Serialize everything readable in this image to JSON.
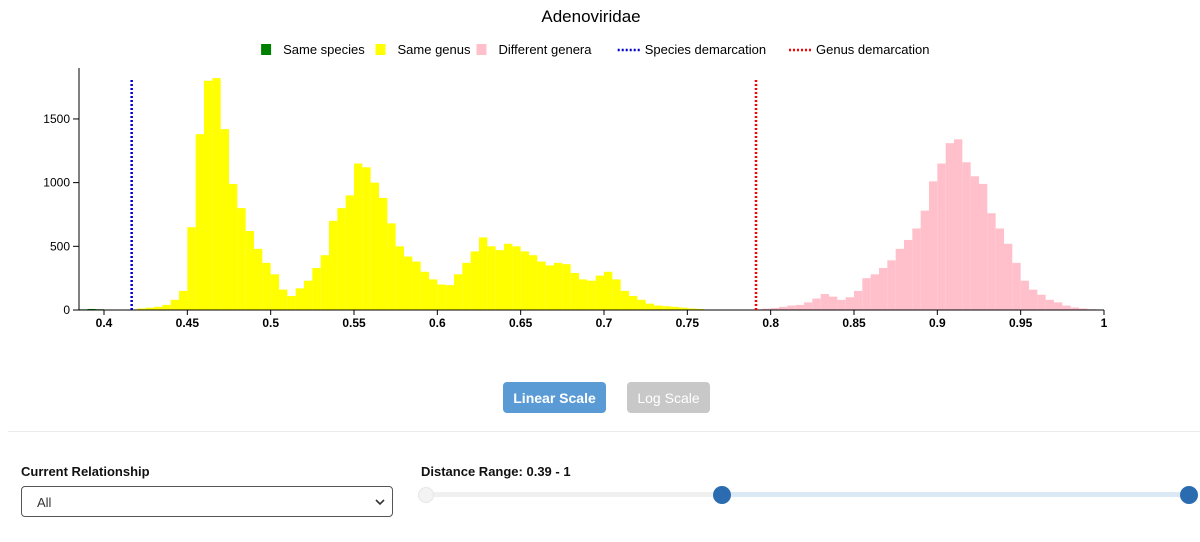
{
  "chart_data": {
    "type": "bar",
    "title": "Adenoviridae",
    "xlim": [
      0.385,
      1.0
    ],
    "ylim": [
      0,
      1900
    ],
    "x_ticks": [
      "0.4",
      "0.45",
      "0.5",
      "0.55",
      "0.6",
      "0.65",
      "0.7",
      "0.75",
      "0.8",
      "0.85",
      "0.9",
      "0.95",
      "1"
    ],
    "y_ticks": [
      "0",
      "500",
      "1000",
      "1500"
    ],
    "bin_width": 0.005,
    "grid": false,
    "legend_position": "top-center",
    "legend": [
      {
        "label": "Same species",
        "color": "#008000",
        "kind": "swatch"
      },
      {
        "label": "Same genus",
        "color": "#ffff00",
        "kind": "swatch"
      },
      {
        "label": "Different genera",
        "color": "#ffc0cb",
        "kind": "swatch"
      },
      {
        "label": "Species demarcation",
        "color": "#0000cc",
        "kind": "dotted"
      },
      {
        "label": "Genus demarcation",
        "color": "#ff0000",
        "kind": "dotted"
      }
    ],
    "demarcations": [
      {
        "name": "Species demarcation",
        "x": 0.4166,
        "color": "#0000cc"
      },
      {
        "name": "Genus demarcation",
        "x": 0.7912,
        "color": "#ff0000"
      }
    ],
    "series": [
      {
        "name": "Same species",
        "color": "#008000",
        "start": 0.385,
        "values": [
          5,
          8,
          6,
          4,
          3,
          2
        ]
      },
      {
        "name": "Same genus",
        "color": "#ffff00",
        "start": 0.415,
        "values": [
          5,
          12,
          18,
          25,
          40,
          80,
          150,
          650,
          1380,
          1800,
          1820,
          1420,
          990,
          800,
          620,
          480,
          370,
          280,
          160,
          110,
          170,
          230,
          330,
          430,
          700,
          800,
          900,
          1150,
          1120,
          1000,
          880,
          680,
          500,
          420,
          380,
          300,
          240,
          200,
          195,
          280,
          370,
          460,
          570,
          500,
          470,
          520,
          500,
          460,
          430,
          380,
          350,
          370,
          360,
          290,
          240,
          230,
          270,
          300,
          240,
          150,
          110,
          80,
          50,
          35,
          30,
          25,
          18,
          12,
          8,
          4,
          2
        ]
      },
      {
        "name": "Different genera",
        "color": "#ffc0cb",
        "start": 0.79,
        "values": [
          5,
          10,
          15,
          25,
          35,
          40,
          60,
          90,
          125,
          105,
          80,
          100,
          150,
          250,
          280,
          330,
          390,
          480,
          550,
          640,
          780,
          1010,
          1150,
          1310,
          1340,
          1160,
          1050,
          990,
          760,
          640,
          520,
          370,
          230,
          160,
          120,
          80,
          60,
          35,
          20,
          12,
          6,
          3
        ]
      }
    ]
  },
  "controls": {
    "linear_label": "Linear Scale",
    "log_label": "Log Scale",
    "relationship_label": "Current Relationship",
    "relationship_value": "All",
    "distance_range_label": "Distance Range: 0.39 - 1",
    "range_min": 0.39,
    "range_max": 1
  }
}
